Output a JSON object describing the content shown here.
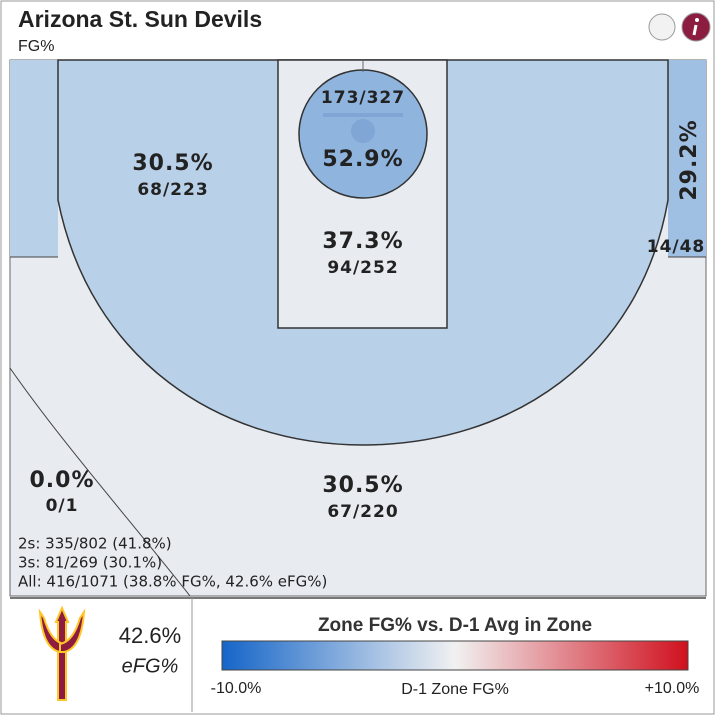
{
  "header": {
    "title": "Arizona St. Sun Devils",
    "subtitle": "FG%"
  },
  "zones": [
    {
      "pct": "52.9%",
      "shots": "173/327"
    },
    {
      "pct": "37.3%",
      "shots": "94/252"
    },
    {
      "pct": "30.5%",
      "shots": "68/223"
    },
    {
      "pct": "29.2%",
      "shots": "14/48"
    },
    {
      "pct": "30.5%",
      "shots": "67/220"
    },
    {
      "pct": "0.0%",
      "shots": "0/1"
    }
  ],
  "summary": [
    "2s: 335/802 (41.8%)",
    "3s: 81/269 (30.1%)",
    "All: 416/1071 (38.8% FG%, 42.6% eFG%)"
  ],
  "footer": {
    "efg_value": "42.6%",
    "efg_label": "eFG%",
    "legend_title": "Zone FG% vs. D-1 Avg in Zone",
    "legend_min": "-10.0%",
    "legend_mid": "D-1 Zone FG%",
    "legend_max": "+10.0%"
  }
}
